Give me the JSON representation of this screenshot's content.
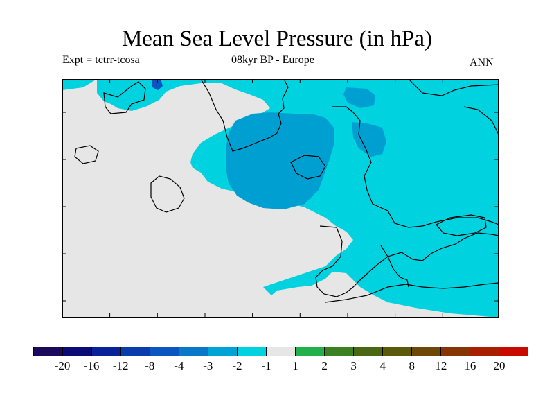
{
  "title": "Mean Sea Level Pressure (in hPa)",
  "experiment": "Expt = tctrr-tcosa",
  "period": "08kyr BP - Europe",
  "season": "ANN",
  "colors": {
    "land_border": "#000000",
    "neutral": "#e6e6e6",
    "light_blue": "#00d2e0",
    "mid_blue": "#009fd1"
  },
  "colorbar": {
    "swatches": [
      "#1b0a5c",
      "#0b0b78",
      "#08239a",
      "#0b3cae",
      "#0a56c0",
      "#0a78c8",
      "#00a3d6",
      "#00d2e0",
      "#e6e6e6",
      "#22b04a",
      "#3c8024",
      "#4a6814",
      "#5a5a0a",
      "#6e4808",
      "#863604",
      "#a82000",
      "#c80a00"
    ],
    "labels": [
      "-20",
      "-16",
      "-12",
      "-8",
      "-4",
      "-3",
      "-2",
      "-1",
      "1",
      "2",
      "3",
      "4",
      "8",
      "12",
      "16",
      "20"
    ]
  }
}
